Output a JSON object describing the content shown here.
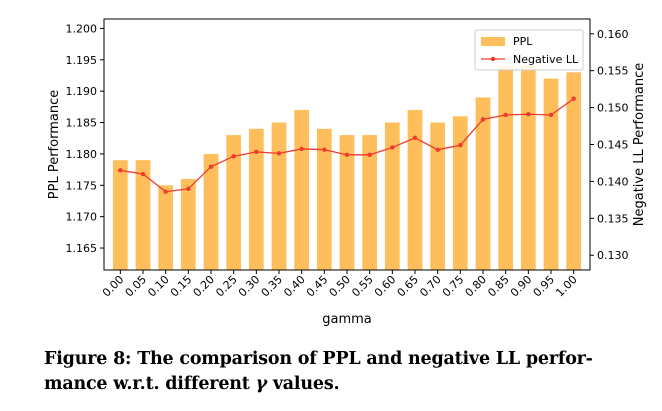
{
  "chart_data": {
    "type": "bar+line",
    "categories": [
      "0.00",
      "0.05",
      "0.10",
      "0.15",
      "0.20",
      "0.25",
      "0.30",
      "0.35",
      "0.40",
      "0.45",
      "0.50",
      "0.55",
      "0.60",
      "0.65",
      "0.70",
      "0.75",
      "0.80",
      "0.85",
      "0.90",
      "0.95",
      "1.00"
    ],
    "xlabel": "gamma",
    "series": [
      {
        "name": "PPL",
        "kind": "bar",
        "axis": "left",
        "color": "#ffbe5c",
        "values": [
          1.179,
          1.179,
          1.175,
          1.176,
          1.18,
          1.183,
          1.184,
          1.185,
          1.187,
          1.184,
          1.183,
          1.183,
          1.185,
          1.187,
          1.185,
          1.186,
          1.189,
          1.194,
          1.194,
          1.192,
          1.193
        ]
      },
      {
        "name": "Negative LL",
        "kind": "line",
        "axis": "right",
        "color": "#f03a2c",
        "values": [
          0.1415,
          0.141,
          0.1386,
          0.139,
          0.142,
          0.1434,
          0.144,
          0.1438,
          0.1444,
          0.1443,
          0.1436,
          0.1436,
          0.1446,
          0.1459,
          0.1443,
          0.1449,
          0.1484,
          0.149,
          0.1491,
          0.149,
          0.1512
        ]
      }
    ],
    "left_axis": {
      "label": "PPL Performance",
      "ylim": [
        1.1615,
        1.2015
      ],
      "ticks": [
        "1.165",
        "1.170",
        "1.175",
        "1.180",
        "1.185",
        "1.190",
        "1.195",
        "1.200"
      ]
    },
    "right_axis": {
      "label": "Negative LL Performance",
      "ylim": [
        0.128,
        0.162
      ],
      "ticks": [
        "0.130",
        "0.135",
        "0.140",
        "0.145",
        "0.150",
        "0.155",
        "0.160"
      ]
    },
    "legend_position": "top-right",
    "grid": false
  },
  "caption": {
    "line1": "Figure 8: The comparison of PPL and negative LL perfor-",
    "line2_prefix": "mance w.r.t. different ",
    "gamma_symbol": "γ",
    "line2_suffix": " values."
  }
}
